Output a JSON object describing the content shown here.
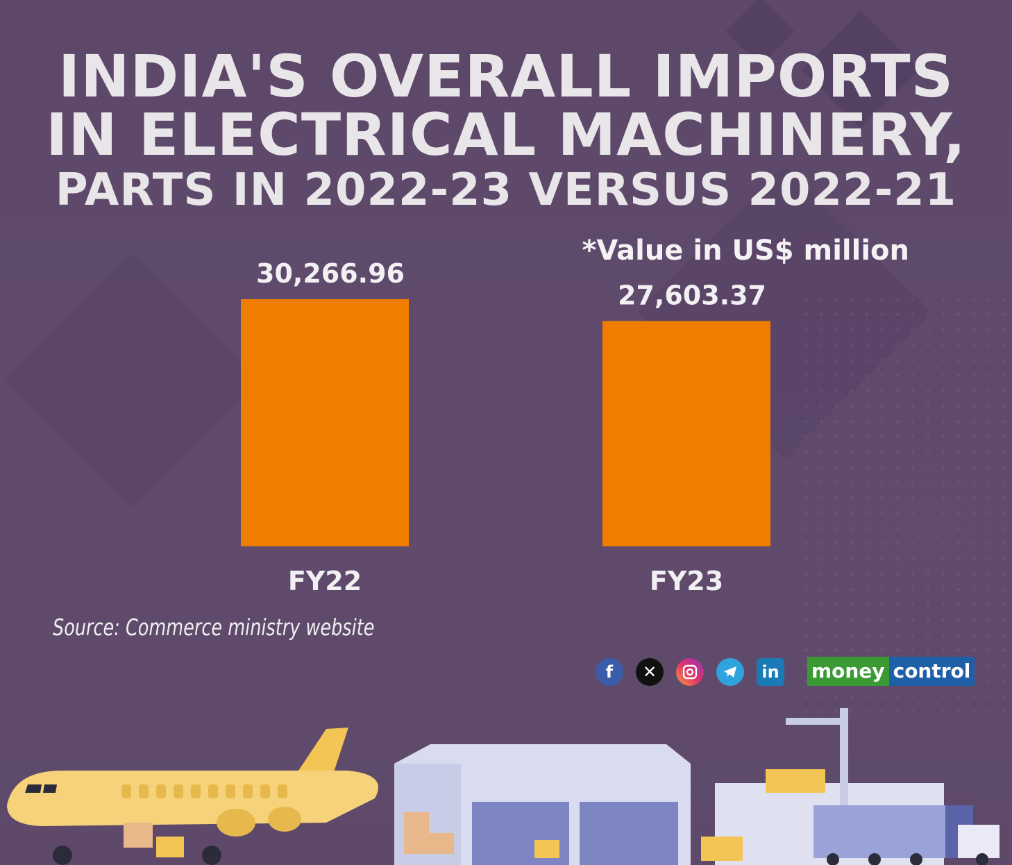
{
  "title_lines": [
    "INDIA'S OVERALL IMPORTS",
    "IN ELECTRICAL MACHINERY,",
    "PARTS IN 2022-23 VERSUS 2022-21"
  ],
  "unit_note": "*Value in US$ million",
  "source": "Source: Commerce ministry website",
  "social_icons": [
    "facebook-icon",
    "x-icon",
    "instagram-icon",
    "telegram-icon",
    "linkedin-icon"
  ],
  "logo": {
    "part1": "money",
    "part2": "control"
  },
  "colors": {
    "bar": "#f07c00",
    "background": "#5f4a6c",
    "text": "#ececee"
  },
  "chart_data": {
    "type": "bar",
    "categories": [
      "FY22",
      "FY23"
    ],
    "values": [
      30266.96,
      27603.37
    ],
    "value_labels": [
      "30,266.96",
      "27,603.37"
    ],
    "title": "INDIA'S OVERALL IMPORTS IN ELECTRICAL MACHINERY, PARTS IN 2022-23 VERSUS 2022-21",
    "xlabel": "",
    "ylabel": "",
    "ylim": [
      0,
      32000
    ],
    "grid": false,
    "legend": "none"
  }
}
